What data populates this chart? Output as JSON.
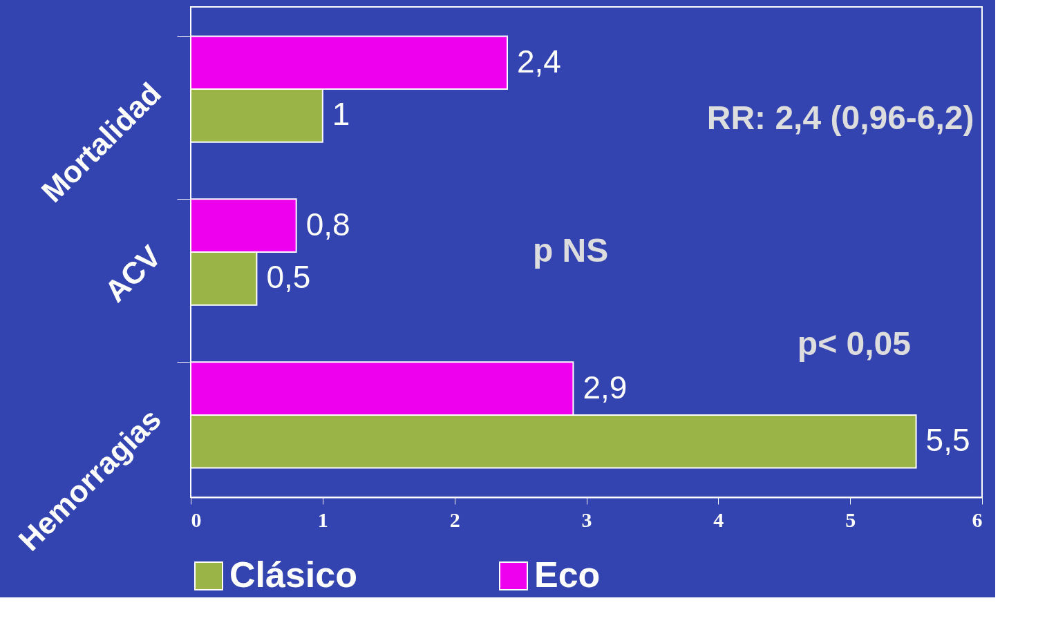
{
  "chart_data": {
    "type": "bar",
    "orientation": "horizontal",
    "categories": [
      "Mortalidad",
      "ACV",
      "Hemorragias"
    ],
    "series": [
      {
        "name": "Clásico",
        "color": "#9bb447",
        "values": [
          1,
          0.5,
          5.5
        ],
        "value_labels": [
          "1",
          "0,5",
          "5,5"
        ]
      },
      {
        "name": "Eco",
        "color": "#ee00ee",
        "values": [
          2.4,
          0.8,
          2.9
        ],
        "value_labels": [
          "2,4",
          "0,8",
          "2,9"
        ]
      }
    ],
    "xlim": [
      0,
      6
    ],
    "xticks": [
      0,
      1,
      2,
      3,
      4,
      5,
      6
    ],
    "grid": false,
    "legend": "bottom",
    "annotations": [
      "RR: 2,4 (0,96-6,2)",
      "p NS",
      "p< 0,05"
    ]
  }
}
